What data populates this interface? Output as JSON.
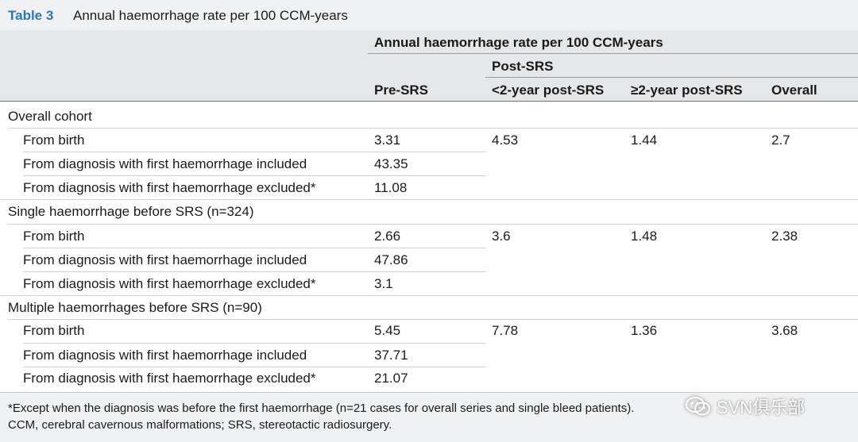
{
  "caption": {
    "label": "Table 3",
    "title": "Annual haemorrhage rate per 100 CCM-years"
  },
  "header": {
    "span": "Annual haemorrhage rate per 100 CCM-years",
    "post_group": "Post-SRS",
    "columns": [
      "Pre-SRS",
      "<2-year post-SRS",
      "≥2-year post-SRS",
      "Overall"
    ]
  },
  "groups": [
    {
      "title": "Overall cohort",
      "rows": [
        {
          "label": "From birth",
          "pre": "3.31"
        },
        {
          "label": "From diagnosis with first haemorrhage included",
          "pre": "43.35"
        },
        {
          "label": "From diagnosis with first haemorrhage excluded*",
          "pre": "11.08"
        }
      ],
      "post_lt2": "4.53",
      "post_ge2": "1.44",
      "overall": "2.7"
    },
    {
      "title": "Single haemorrhage before SRS (n=324)",
      "rows": [
        {
          "label": "From birth",
          "pre": "2.66"
        },
        {
          "label": "From diagnosis with first haemorrhage included",
          "pre": "47.86"
        },
        {
          "label": "From diagnosis with first haemorrhage excluded*",
          "pre": "3.1"
        }
      ],
      "post_lt2": "3.6",
      "post_ge2": "1.48",
      "overall": "2.38"
    },
    {
      "title": "Multiple haemorrhages before SRS (n=90)",
      "rows": [
        {
          "label": "From birth",
          "pre": "5.45"
        },
        {
          "label": "From diagnosis with first haemorrhage included",
          "pre": "37.71"
        },
        {
          "label": "From diagnosis with first haemorrhage excluded*",
          "pre": "21.07"
        }
      ],
      "post_lt2": "7.78",
      "post_ge2": "1.36",
      "overall": "3.68"
    }
  ],
  "footnotes": [
    "*Except when the diagnosis was before the first haemorrhage (n=21 cases for overall series and single bleed patients).",
    "CCM, cerebral cavernous malformations; SRS, stereotactic radiosurgery."
  ],
  "watermark": {
    "text": "SVN俱乐部",
    "icon": "wechat-icon"
  }
}
